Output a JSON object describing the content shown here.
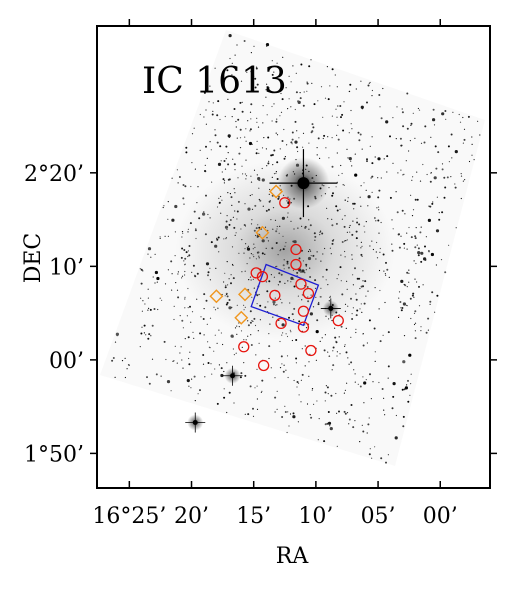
{
  "chart_data": {
    "type": "scatter",
    "title": "IC 1613",
    "xlabel": "RA",
    "ylabel": "DEC",
    "x_tick_labels": [
      "16°25’",
      "20’",
      "15’",
      "10’",
      "05’",
      "00’"
    ],
    "y_tick_labels": [
      "2°20’",
      "10’",
      "00’",
      "1°50’"
    ],
    "x_ticks_arcmin": [
      25,
      20,
      15,
      10,
      5,
      0
    ],
    "y_ticks_arcmin": [
      140,
      130,
      120,
      110
    ],
    "xlim_arcmin": [
      27.6,
      -4.0
    ],
    "ylim_arcmin": [
      106.3,
      155.7
    ],
    "x_axis_inverted": true,
    "grid": false,
    "legend": "none",
    "background": "optical sky image (inverted greyscale)",
    "colors": {
      "circles": "#e8140e",
      "diamonds": "#f0961e",
      "box": "#1e1ed2"
    },
    "series": [
      {
        "marker": "circle",
        "points": [
          [
            12.5,
            136.8
          ],
          [
            11.6,
            131.8
          ],
          [
            11.6,
            130.2
          ],
          [
            14.8,
            129.3
          ],
          [
            14.3,
            128.9
          ],
          [
            11.2,
            128.1
          ],
          [
            10.6,
            127.1
          ],
          [
            13.3,
            126.9
          ],
          [
            11.0,
            125.2
          ],
          [
            8.2,
            124.2
          ],
          [
            12.8,
            123.9
          ],
          [
            11.0,
            123.5
          ],
          [
            15.8,
            121.4
          ],
          [
            10.4,
            121.0
          ],
          [
            14.2,
            119.4
          ]
        ]
      },
      {
        "marker": "diamond",
        "points": [
          [
            13.2,
            138.0
          ],
          [
            14.3,
            133.6
          ],
          [
            18.0,
            126.8
          ],
          [
            15.7,
            127.0
          ],
          [
            16.0,
            124.5
          ]
        ]
      }
    ],
    "box_corners": [
      [
        14.0,
        130.2
      ],
      [
        9.8,
        128.0
      ],
      [
        11.0,
        123.7
      ],
      [
        15.2,
        125.7
      ]
    ],
    "bright_stars": [
      [
        11.0,
        138.9
      ],
      [
        19.7,
        113.3
      ],
      [
        16.7,
        118.3
      ],
      [
        8.8,
        125.5
      ]
    ]
  }
}
